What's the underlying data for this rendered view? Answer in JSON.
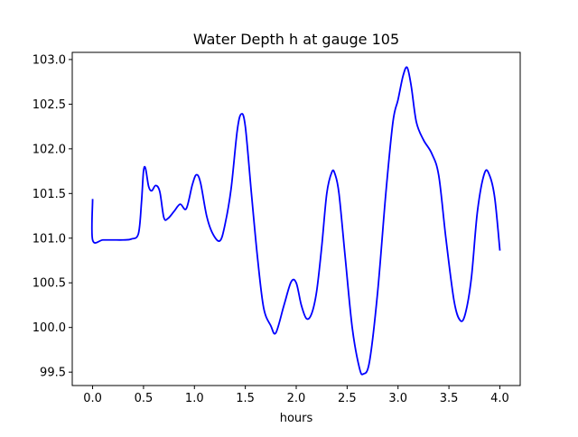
{
  "chart_data": {
    "type": "line",
    "title": "Water Depth h at gauge 105",
    "xlabel": "hours",
    "ylabel": "",
    "xlim": [
      -0.2,
      4.2
    ],
    "ylim": [
      99.35,
      103.08
    ],
    "x_ticks": [
      0.0,
      0.5,
      1.0,
      1.5,
      2.0,
      2.5,
      3.0,
      3.5,
      4.0
    ],
    "x_tick_labels": [
      "0.0",
      "0.5",
      "1.0",
      "1.5",
      "2.0",
      "2.5",
      "3.0",
      "3.5",
      "4.0"
    ],
    "y_ticks": [
      99.5,
      100.0,
      100.5,
      101.0,
      101.5,
      102.0,
      102.5,
      103.0
    ],
    "y_tick_labels": [
      "99.5",
      "100.0",
      "100.5",
      "101.0",
      "101.5",
      "102.0",
      "102.5",
      "103.0"
    ],
    "grid": false,
    "series": [
      {
        "color": "#0000ff",
        "x": [
          0.0,
          0.0,
          0.1,
          0.2,
          0.3,
          0.38,
          0.45,
          0.48,
          0.5,
          0.52,
          0.55,
          0.58,
          0.62,
          0.66,
          0.7,
          0.74,
          0.8,
          0.86,
          0.92,
          0.98,
          1.02,
          1.06,
          1.12,
          1.18,
          1.25,
          1.3,
          1.36,
          1.42,
          1.46,
          1.5,
          1.56,
          1.62,
          1.68,
          1.75,
          1.8,
          1.88,
          1.95,
          2.0,
          2.05,
          2.1,
          2.15,
          2.2,
          2.25,
          2.3,
          2.35,
          2.38,
          2.42,
          2.48,
          2.55,
          2.62,
          2.66,
          2.72,
          2.8,
          2.88,
          2.95,
          3.0,
          3.05,
          3.09,
          3.13,
          3.18,
          3.25,
          3.33,
          3.4,
          3.47,
          3.55,
          3.61,
          3.66,
          3.72,
          3.78,
          3.85,
          3.9,
          3.95,
          4.0
        ],
        "y": [
          101.43,
          100.98,
          100.98,
          100.98,
          100.98,
          100.99,
          101.05,
          101.4,
          101.75,
          101.78,
          101.58,
          101.53,
          101.59,
          101.52,
          101.23,
          101.22,
          101.3,
          101.38,
          101.33,
          101.6,
          101.71,
          101.62,
          101.25,
          101.05,
          100.97,
          101.15,
          101.55,
          102.2,
          102.39,
          102.25,
          101.5,
          100.78,
          100.22,
          100.02,
          99.94,
          100.25,
          100.51,
          100.5,
          100.25,
          100.1,
          100.15,
          100.4,
          100.9,
          101.5,
          101.74,
          101.72,
          101.5,
          100.8,
          100.0,
          99.55,
          99.48,
          99.62,
          100.4,
          101.5,
          102.3,
          102.55,
          102.82,
          102.91,
          102.7,
          102.3,
          102.1,
          101.95,
          101.7,
          101.0,
          100.3,
          100.08,
          100.15,
          100.55,
          101.3,
          101.73,
          101.7,
          101.45,
          100.87
        ]
      }
    ]
  }
}
